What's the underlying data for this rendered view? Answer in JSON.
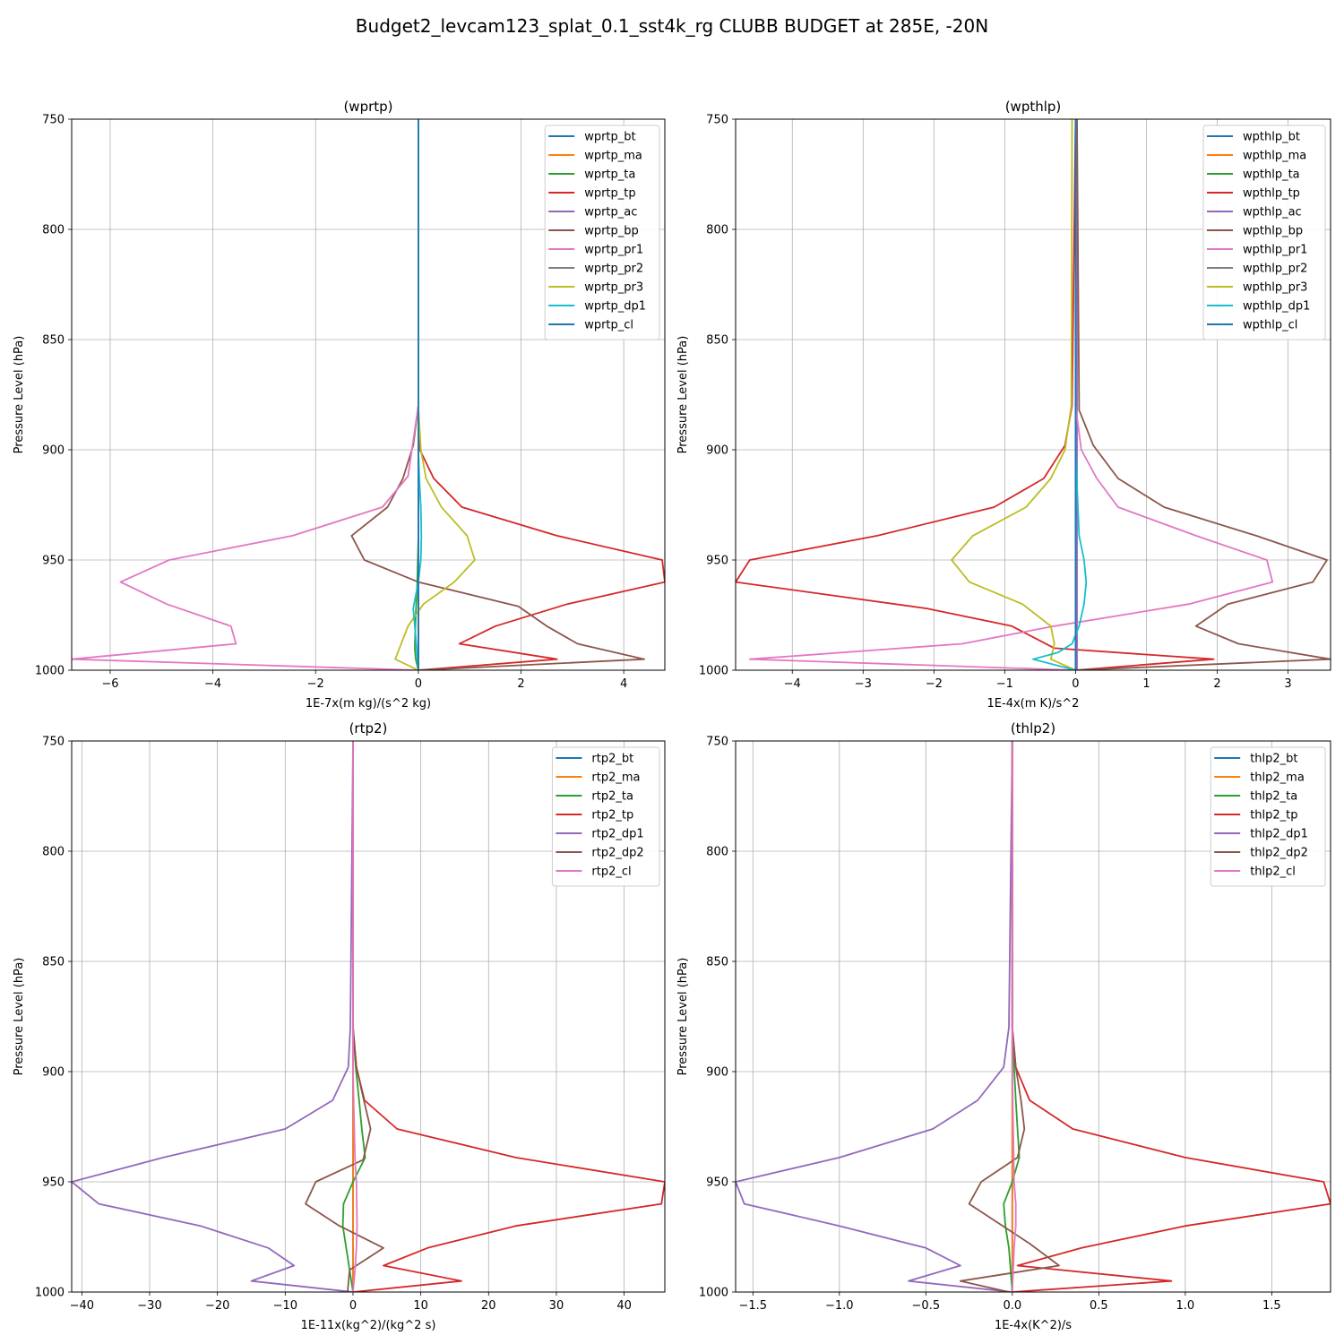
{
  "figure": {
    "suptitle": "Budget2_levcam123_splat_0.1_sst4k_rg CLUBB BUDGET at 285E, -20N"
  },
  "chart_data": [
    {
      "type": "line",
      "title": "(wprtp)",
      "xlabel": "1E-7x(m kg)/(s^2 kg)",
      "ylabel": "Pressure Level (hPa)",
      "xlim": [
        -6.75,
        4.8
      ],
      "ylim": [
        1000,
        750
      ],
      "xticks": [
        -6,
        -4,
        -2,
        0,
        2,
        4
      ],
      "xtick_labels": [
        "−6",
        "−4",
        "−2",
        "0",
        "2",
        "4"
      ],
      "yticks": [
        750,
        800,
        850,
        900,
        950,
        1000
      ],
      "ytick_labels": [
        "750",
        "800",
        "850",
        "900",
        "950",
        "1000"
      ],
      "grid": true,
      "legend_position": "top-right",
      "series": [
        {
          "name": "wprtp_bt",
          "color": "#1f77b4",
          "x": [
            0,
            0,
            0,
            0
          ],
          "y": [
            750,
            900,
            950,
            1000
          ]
        },
        {
          "name": "wprtp_ma",
          "color": "#ff7f0e",
          "x": [
            0,
            0,
            0,
            0
          ],
          "y": [
            750,
            900,
            950,
            1000
          ]
        },
        {
          "name": "wprtp_ta",
          "color": "#2ca02c",
          "x": [
            0,
            0,
            0,
            0,
            -0.02,
            -0.05,
            -0.07,
            -0.05,
            0
          ],
          "y": [
            750,
            880,
            900,
            940,
            960,
            975,
            990,
            995,
            1000
          ]
        },
        {
          "name": "wprtp_tp",
          "color": "#d62728",
          "x": [
            0,
            0,
            0.03,
            0.3,
            0.85,
            2.7,
            4.75,
            4.8,
            2.9,
            1.5,
            0.8,
            2.7,
            0
          ],
          "y": [
            750,
            880,
            900,
            913,
            926,
            939,
            950,
            960,
            970,
            980,
            988,
            995,
            1000
          ]
        },
        {
          "name": "wprtp_ac",
          "color": "#9467bd",
          "x": [
            0,
            0,
            0
          ],
          "y": [
            750,
            900,
            1000
          ]
        },
        {
          "name": "wprtp_bp",
          "color": "#8c564b",
          "x": [
            0,
            0,
            -0.1,
            -0.3,
            -0.6,
            -1.3,
            -1.05,
            0,
            1.95,
            2.5,
            3.1,
            4.4,
            0
          ],
          "y": [
            750,
            880,
            898,
            913,
            926,
            939,
            950,
            960,
            971,
            980,
            988,
            995,
            1000
          ]
        },
        {
          "name": "wprtp_pr1",
          "color": "#e377c2",
          "x": [
            0,
            0,
            -0.2,
            -0.7,
            -2.45,
            -4.85,
            -5.8,
            -4.9,
            -3.65,
            -3.55,
            -6.75,
            0
          ],
          "y": [
            750,
            880,
            912,
            926,
            939,
            950,
            960,
            970,
            980,
            988,
            995,
            1000
          ]
        },
        {
          "name": "wprtp_pr2",
          "color": "#7f7f7f",
          "x": [
            0,
            0,
            0
          ],
          "y": [
            750,
            900,
            1000
          ]
        },
        {
          "name": "wprtp_pr3",
          "color": "#bcbd22",
          "x": [
            0,
            0,
            0.05,
            0.15,
            0.45,
            0.95,
            1.1,
            0.7,
            0.1,
            -0.2,
            -0.45,
            0
          ],
          "y": [
            750,
            880,
            900,
            913,
            926,
            939,
            950,
            960,
            970,
            980,
            995,
            1000
          ]
        },
        {
          "name": "wprtp_dp1",
          "color": "#17becf",
          "x": [
            0,
            0,
            0.02,
            0.05,
            0.06,
            0.05,
            0,
            -0.1,
            -0.05,
            0
          ],
          "y": [
            750,
            900,
            913,
            926,
            939,
            950,
            960,
            972,
            985,
            1000
          ]
        },
        {
          "name": "wprtp_cl",
          "color": "#1f77b4",
          "x": [
            0,
            0,
            0
          ],
          "y": [
            750,
            900,
            1000
          ]
        }
      ]
    },
    {
      "type": "line",
      "title": "(wpthlp)",
      "xlabel": "1E-4x(m K)/s^2",
      "ylabel": "Pressure Level (hPa)",
      "xlim": [
        -4.8,
        3.6
      ],
      "ylim": [
        1000,
        750
      ],
      "xticks": [
        -4,
        -3,
        -2,
        -1,
        0,
        1,
        2,
        3
      ],
      "xtick_labels": [
        "−4",
        "−3",
        "−2",
        "−1",
        "0",
        "1",
        "2",
        "3"
      ],
      "yticks": [
        750,
        800,
        850,
        900,
        950,
        1000
      ],
      "ytick_labels": [
        "750",
        "800",
        "850",
        "900",
        "950",
        "1000"
      ],
      "grid": true,
      "legend_position": "top-right",
      "series": [
        {
          "name": "wpthlp_bt",
          "color": "#1f77b4",
          "x": [
            0,
            0,
            0
          ],
          "y": [
            750,
            900,
            1000
          ]
        },
        {
          "name": "wpthlp_ma",
          "color": "#ff7f0e",
          "x": [
            0,
            0,
            0
          ],
          "y": [
            750,
            900,
            1000
          ]
        },
        {
          "name": "wpthlp_ta",
          "color": "#2ca02c",
          "x": [
            0,
            0,
            0
          ],
          "y": [
            750,
            900,
            1000
          ]
        },
        {
          "name": "wpthlp_tp",
          "color": "#d62728",
          "x": [
            0,
            -0.05,
            -0.15,
            -0.45,
            -1.15,
            -2.8,
            -4.6,
            -4.8,
            -2.1,
            -0.9,
            -0.3,
            1.95,
            0
          ],
          "y": [
            750,
            880,
            898,
            913,
            926,
            939,
            950,
            960,
            972,
            980,
            990,
            995,
            1000
          ]
        },
        {
          "name": "wpthlp_ac",
          "color": "#9467bd",
          "x": [
            0.02,
            0.02,
            0.02
          ],
          "y": [
            750,
            900,
            1000
          ]
        },
        {
          "name": "wpthlp_bp",
          "color": "#8c564b",
          "x": [
            0.02,
            0.05,
            0.25,
            0.6,
            1.25,
            2.55,
            3.55,
            3.35,
            2.15,
            1.7,
            2.3,
            3.6,
            0
          ],
          "y": [
            750,
            882,
            898,
            913,
            926,
            939,
            950,
            960,
            970,
            980,
            988,
            995,
            1000
          ]
        },
        {
          "name": "wpthlp_pr1",
          "color": "#e377c2",
          "x": [
            0,
            0,
            0.08,
            0.3,
            0.6,
            1.7,
            2.7,
            2.78,
            1.6,
            -0.3,
            -1.6,
            -4.6,
            0
          ],
          "y": [
            750,
            880,
            900,
            913,
            926,
            939,
            950,
            960,
            970,
            980,
            988,
            995,
            1000
          ]
        },
        {
          "name": "wpthlp_pr2",
          "color": "#7f7f7f",
          "x": [
            0,
            0,
            0
          ],
          "y": [
            750,
            900,
            1000
          ]
        },
        {
          "name": "wpthlp_pr3",
          "color": "#bcbd22",
          "x": [
            -0.05,
            -0.06,
            -0.15,
            -0.35,
            -0.7,
            -1.45,
            -1.75,
            -1.5,
            -0.75,
            -0.35,
            -0.3,
            -0.35,
            0
          ],
          "y": [
            750,
            880,
            900,
            913,
            926,
            939,
            950,
            960,
            970,
            980,
            988,
            995,
            1000
          ]
        },
        {
          "name": "wpthlp_dp1",
          "color": "#17becf",
          "x": [
            0,
            0,
            0.05,
            0.12,
            0.15,
            0.12,
            0.05,
            -0.05,
            -0.25,
            -0.6,
            0
          ],
          "y": [
            750,
            900,
            939,
            950,
            960,
            970,
            980,
            988,
            992,
            995,
            1000
          ]
        },
        {
          "name": "wpthlp_cl",
          "color": "#1f77b4",
          "x": [
            0,
            0,
            0
          ],
          "y": [
            750,
            900,
            1000
          ]
        }
      ]
    },
    {
      "type": "line",
      "title": "(rtp2)",
      "xlabel": "1E-11x(kg^2)/(kg^2 s)",
      "ylabel": "Pressure Level (hPa)",
      "xlim": [
        -41.5,
        46
      ],
      "ylim": [
        1000,
        750
      ],
      "xticks": [
        -40,
        -30,
        -20,
        -10,
        0,
        10,
        20,
        30,
        40
      ],
      "xtick_labels": [
        "−40",
        "−30",
        "−20",
        "−10",
        "0",
        "10",
        "20",
        "30",
        "40"
      ],
      "yticks": [
        750,
        800,
        850,
        900,
        950,
        1000
      ],
      "ytick_labels": [
        "750",
        "800",
        "850",
        "900",
        "950",
        "1000"
      ],
      "grid": true,
      "legend_position": "top-right",
      "series": [
        {
          "name": "rtp2_bt",
          "color": "#1f77b4",
          "x": [
            0,
            0,
            0
          ],
          "y": [
            750,
            900,
            1000
          ]
        },
        {
          "name": "rtp2_ma",
          "color": "#ff7f0e",
          "x": [
            0,
            0,
            0
          ],
          "y": [
            750,
            900,
            1000
          ]
        },
        {
          "name": "rtp2_ta",
          "color": "#2ca02c",
          "x": [
            0,
            0,
            0.4,
            0.9,
            1.3,
            1.8,
            0,
            -1.4,
            -1.5,
            -1.0,
            -0.5,
            0
          ],
          "y": [
            750,
            880,
            898,
            913,
            926,
            939,
            950,
            960,
            970,
            980,
            990,
            1000
          ]
        },
        {
          "name": "rtp2_tp",
          "color": "#d62728",
          "x": [
            0,
            0,
            0.5,
            1.7,
            6.5,
            24,
            46,
            45.5,
            24,
            11,
            4.5,
            16,
            0
          ],
          "y": [
            750,
            880,
            898,
            913,
            926,
            939,
            950,
            960,
            970,
            980,
            988,
            995,
            1000
          ]
        },
        {
          "name": "rtp2_dp1",
          "color": "#9467bd",
          "x": [
            0,
            -0.4,
            -0.7,
            -3,
            -10,
            -28,
            -41.5,
            -37.5,
            -22.5,
            -12.5,
            -8.7,
            -15,
            0
          ],
          "y": [
            750,
            880,
            898,
            913,
            926,
            939,
            950,
            960,
            970,
            980,
            988,
            995,
            1000
          ]
        },
        {
          "name": "rtp2_dp2",
          "color": "#8c564b",
          "x": [
            0,
            0,
            0.5,
            1.6,
            2.6,
            1.5,
            -5.5,
            -7,
            -2,
            4.5,
            -0.5,
            -0.8
          ],
          "y": [
            750,
            880,
            898,
            913,
            926,
            940,
            950,
            960,
            970,
            980,
            990,
            1000
          ]
        },
        {
          "name": "rtp2_cl",
          "color": "#e377c2",
          "x": [
            0,
            0,
            0.3,
            0.5,
            0.6,
            0.5,
            0.3,
            0
          ],
          "y": [
            750,
            900,
            940,
            950,
            970,
            980,
            990,
            1000
          ]
        }
      ]
    },
    {
      "type": "line",
      "title": "(thlp2)",
      "xlabel": "1E-4x(K^2)/s",
      "ylabel": "Pressure Level (hPa)",
      "xlim": [
        -1.6,
        1.84
      ],
      "ylim": [
        1000,
        750
      ],
      "xticks": [
        -1.5,
        -1.0,
        -0.5,
        0.0,
        0.5,
        1.0,
        1.5
      ],
      "xtick_labels": [
        "−1.5",
        "−1.0",
        "−0.5",
        "0.0",
        "0.5",
        "1.0",
        "1.5"
      ],
      "yticks": [
        750,
        800,
        850,
        900,
        950,
        1000
      ],
      "ytick_labels": [
        "750",
        "800",
        "850",
        "900",
        "950",
        "1000"
      ],
      "grid": true,
      "legend_position": "top-right",
      "series": [
        {
          "name": "thlp2_bt",
          "color": "#1f77b4",
          "x": [
            0,
            0,
            0
          ],
          "y": [
            750,
            900,
            1000
          ]
        },
        {
          "name": "thlp2_ma",
          "color": "#ff7f0e",
          "x": [
            0,
            0,
            0
          ],
          "y": [
            750,
            900,
            1000
          ]
        },
        {
          "name": "thlp2_ta",
          "color": "#2ca02c",
          "x": [
            0,
            0,
            0.01,
            0.02,
            0.03,
            0.04,
            0,
            -0.05,
            -0.04,
            -0.02,
            0
          ],
          "y": [
            750,
            880,
            898,
            913,
            926,
            939,
            950,
            960,
            970,
            980,
            1000
          ]
        },
        {
          "name": "thlp2_tp",
          "color": "#d62728",
          "x": [
            0,
            0,
            0.02,
            0.1,
            0.35,
            1.0,
            1.8,
            1.84,
            1.0,
            0.4,
            0.03,
            0.92,
            0
          ],
          "y": [
            750,
            880,
            898,
            913,
            926,
            939,
            950,
            960,
            970,
            980,
            988,
            995,
            1000
          ]
        },
        {
          "name": "thlp2_dp1",
          "color": "#9467bd",
          "x": [
            0,
            -0.02,
            -0.05,
            -0.2,
            -0.46,
            -1.0,
            -1.6,
            -1.55,
            -1.0,
            -0.5,
            -0.3,
            -0.6,
            0
          ],
          "y": [
            750,
            880,
            898,
            913,
            926,
            939,
            950,
            960,
            970,
            980,
            988,
            995,
            1000
          ]
        },
        {
          "name": "thlp2_dp2",
          "color": "#8c564b",
          "x": [
            0,
            0,
            0.02,
            0.05,
            0.07,
            0.03,
            -0.18,
            -0.25,
            0.1,
            0.27,
            -0.3,
            -0.02
          ],
          "y": [
            750,
            880,
            898,
            913,
            926,
            939,
            950,
            960,
            978,
            988,
            995,
            1000
          ]
        },
        {
          "name": "thlp2_cl",
          "color": "#e377c2",
          "x": [
            0,
            0,
            0.01,
            0.02,
            0.02,
            0.01,
            0
          ],
          "y": [
            750,
            900,
            950,
            960,
            970,
            980,
            1000
          ]
        }
      ]
    }
  ]
}
